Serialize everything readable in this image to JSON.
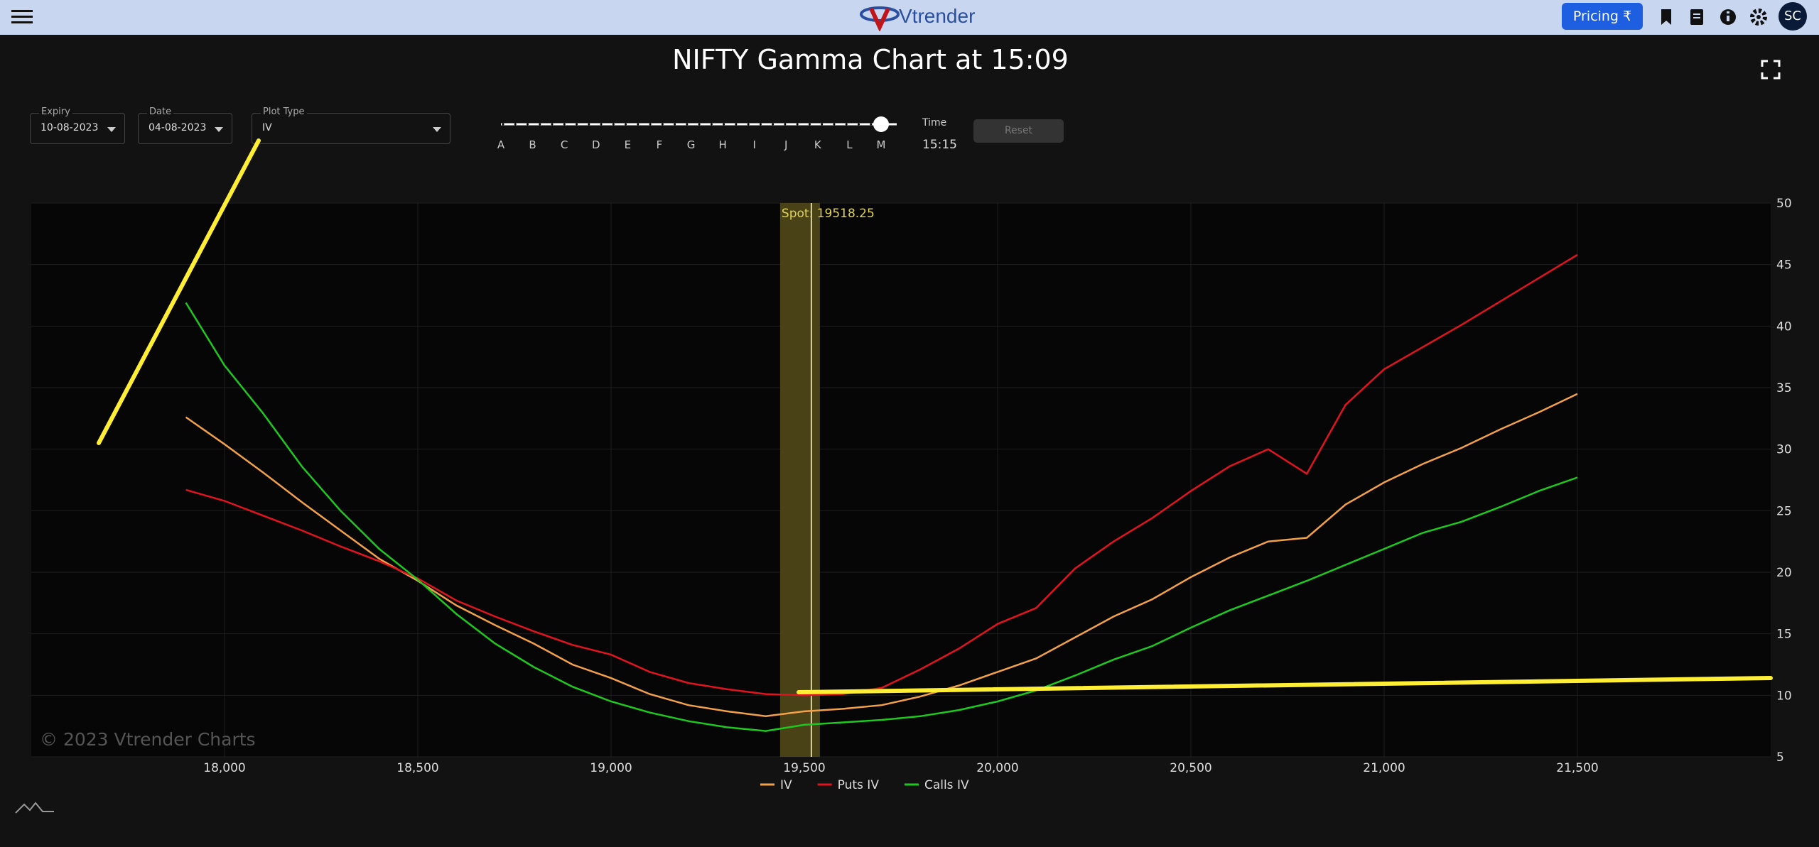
{
  "header": {
    "logo": "Vtrender",
    "pricing": "Pricing ₹",
    "avatar": "SC"
  },
  "title": "NIFTY Gamma Chart at 15:09",
  "controls": {
    "expiry": {
      "label": "Expiry",
      "value": "10-08-2023"
    },
    "date": {
      "label": "Date",
      "value": "04-08-2023"
    },
    "plot_type": {
      "label": "Plot Type",
      "value": "IV"
    },
    "slider_labels": [
      "A",
      "B",
      "C",
      "D",
      "E",
      "F",
      "G",
      "H",
      "I",
      "J",
      "K",
      "L",
      "M"
    ],
    "time": {
      "label": "Time",
      "value": "15:15"
    },
    "reset": "Reset"
  },
  "chart_data": {
    "type": "line",
    "watermark": "© 2023 Vtrender Charts",
    "grid": true,
    "spot": {
      "value": 19518.25,
      "label": "Spot: 19518.25"
    },
    "x": [
      17900,
      18000,
      18100,
      18200,
      18300,
      18400,
      18500,
      18600,
      18700,
      18800,
      18900,
      19000,
      19100,
      19200,
      19300,
      19400,
      19500,
      19600,
      19700,
      19800,
      19900,
      20000,
      20100,
      20200,
      20300,
      20400,
      20500,
      20600,
      20700,
      20800,
      20900,
      21000,
      21100,
      21200,
      21300,
      21400,
      21500
    ],
    "series": [
      {
        "name": "IV",
        "color": "#f2a04a",
        "values": [
          32.6,
          30.4,
          28.1,
          25.7,
          23.4,
          21.1,
          19.3,
          17.3,
          15.7,
          14.2,
          12.5,
          11.4,
          10.1,
          9.2,
          8.7,
          8.3,
          8.7,
          8.9,
          9.2,
          9.9,
          10.8,
          11.9,
          13.0,
          14.7,
          16.4,
          17.8,
          19.6,
          21.2,
          22.5,
          22.8,
          25.5,
          27.3,
          28.8,
          30.1,
          31.6,
          33.0,
          34.5
        ]
      },
      {
        "name": "Puts IV",
        "color": "#e0141e",
        "values": [
          26.7,
          25.8,
          24.6,
          23.4,
          22.1,
          20.9,
          19.5,
          17.7,
          16.4,
          15.2,
          14.1,
          13.3,
          11.9,
          11.0,
          10.5,
          10.1,
          10.0,
          10.1,
          10.6,
          12.1,
          13.8,
          15.8,
          17.1,
          20.3,
          22.5,
          24.4,
          26.6,
          28.6,
          30.0,
          28.0,
          33.6,
          36.5,
          38.3,
          40.1,
          42.0,
          43.9,
          45.8
        ]
      },
      {
        "name": "Calls IV",
        "color": "#1fc81f",
        "values": [
          41.9,
          36.8,
          32.9,
          28.6,
          25.0,
          21.9,
          19.4,
          16.6,
          14.2,
          12.3,
          10.7,
          9.5,
          8.6,
          7.9,
          7.4,
          7.1,
          7.6,
          7.8,
          8.0,
          8.3,
          8.8,
          9.5,
          10.4,
          11.6,
          12.9,
          14.0,
          15.5,
          16.9,
          18.1,
          19.3,
          20.6,
          21.9,
          23.2,
          24.1,
          25.3,
          26.6,
          27.7
        ]
      }
    ],
    "xlim": [
      17500,
      22000
    ],
    "ylim": [
      5,
      50
    ],
    "xticks": [
      {
        "value": 18000,
        "label": "18,000"
      },
      {
        "value": 18500,
        "label": "18,500"
      },
      {
        "value": 19000,
        "label": "19,000"
      },
      {
        "value": 19500,
        "label": "19,500"
      },
      {
        "value": 20000,
        "label": "20,000"
      },
      {
        "value": 20500,
        "label": "20,500"
      },
      {
        "value": 21000,
        "label": "21,000"
      },
      {
        "value": 21500,
        "label": "21,500"
      }
    ],
    "yticks": [
      5,
      10,
      15,
      20,
      25,
      30,
      35,
      40,
      45,
      50
    ]
  }
}
